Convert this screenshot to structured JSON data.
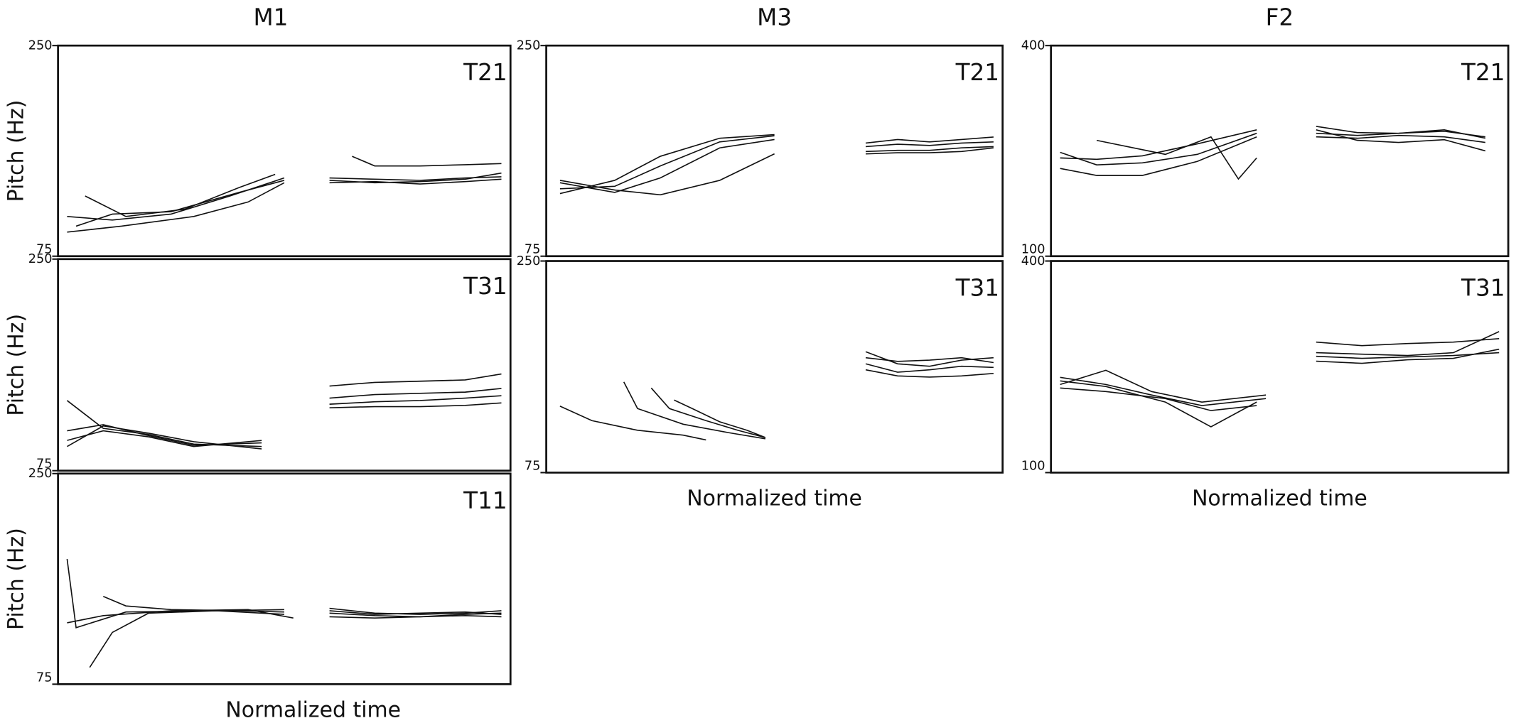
{
  "chart_data": [
    {
      "type": "line",
      "title": "M1",
      "annotation": "T21",
      "y_label": "Pitch (Hz)",
      "xlim": [
        0,
        1
      ],
      "ylim": [
        75,
        250
      ],
      "yticks": [
        75,
        250
      ],
      "series": [
        {
          "color": "#111",
          "x": [
            0.02,
            0.12,
            0.25,
            0.38,
            0.5
          ],
          "values": [
            108,
            105,
            110,
            125,
            140
          ]
        },
        {
          "color": "#111",
          "x": [
            0.04,
            0.12,
            0.25,
            0.4,
            0.5
          ],
          "values": [
            100,
            110,
            112,
            128,
            138
          ]
        },
        {
          "color": "#111",
          "x": [
            0.06,
            0.15,
            0.28,
            0.4,
            0.48
          ],
          "values": [
            125,
            108,
            114,
            132,
            143
          ]
        },
        {
          "color": "#111",
          "x": [
            0.02,
            0.14,
            0.3,
            0.42,
            0.5
          ],
          "values": [
            95,
            100,
            108,
            120,
            136
          ]
        },
        {
          "color": "#111",
          "x": [
            0.6,
            0.7,
            0.8,
            0.9,
            0.98
          ],
          "values": [
            140,
            139,
            138,
            140,
            141
          ]
        },
        {
          "color": "#111",
          "x": [
            0.6,
            0.7,
            0.8,
            0.9,
            0.98
          ],
          "values": [
            136,
            137,
            135,
            137,
            139
          ]
        },
        {
          "color": "#111",
          "x": [
            0.65,
            0.7,
            0.8,
            0.9,
            0.98
          ],
          "values": [
            158,
            150,
            150,
            151,
            152
          ]
        },
        {
          "color": "#111",
          "x": [
            0.6,
            0.7,
            0.8,
            0.9,
            0.98
          ],
          "values": [
            138,
            136,
            137,
            139,
            144
          ]
        }
      ]
    },
    {
      "type": "line",
      "annotation": "T31",
      "y_label": "Pitch (Hz)",
      "xlim": [
        0,
        1
      ],
      "ylim": [
        75,
        250
      ],
      "yticks": [
        75,
        250
      ],
      "series": [
        {
          "color": "#111",
          "x": [
            0.02,
            0.1,
            0.2,
            0.3,
            0.45
          ],
          "values": [
            108,
            113,
            104,
            96,
            98
          ]
        },
        {
          "color": "#111",
          "x": [
            0.02,
            0.1,
            0.2,
            0.3,
            0.45
          ],
          "values": [
            133,
            110,
            105,
            97,
            95
          ]
        },
        {
          "color": "#111",
          "x": [
            0.02,
            0.1,
            0.2,
            0.3,
            0.45
          ],
          "values": [
            95,
            112,
            106,
            99,
            93
          ]
        },
        {
          "color": "#111",
          "x": [
            0.02,
            0.1,
            0.2,
            0.3,
            0.45
          ],
          "values": [
            100,
            108,
            103,
            95,
            100
          ]
        },
        {
          "color": "#111",
          "x": [
            0.6,
            0.7,
            0.8,
            0.9,
            0.98
          ],
          "values": [
            145,
            148,
            149,
            150,
            155
          ]
        },
        {
          "color": "#111",
          "x": [
            0.6,
            0.7,
            0.8,
            0.9,
            0.98
          ],
          "values": [
            135,
            138,
            139,
            140,
            143
          ]
        },
        {
          "color": "#111",
          "x": [
            0.6,
            0.7,
            0.8,
            0.9,
            0.98
          ],
          "values": [
            127,
            128,
            128,
            129,
            131
          ]
        },
        {
          "color": "#111",
          "x": [
            0.6,
            0.7,
            0.8,
            0.9,
            0.98
          ],
          "values": [
            130,
            132,
            133,
            135,
            137
          ]
        }
      ]
    },
    {
      "type": "line",
      "annotation": "T11",
      "y_label": "Pitch (Hz)",
      "x_label": "Normalized time",
      "xlim": [
        0,
        1
      ],
      "ylim": [
        75,
        250
      ],
      "yticks": [
        75,
        250
      ],
      "series": [
        {
          "color": "#111",
          "x": [
            0.02,
            0.04,
            0.15,
            0.35,
            0.5
          ],
          "values": [
            179,
            122,
            135,
            136,
            133
          ]
        },
        {
          "color": "#111",
          "x": [
            0.07,
            0.12,
            0.2,
            0.35,
            0.5
          ],
          "values": [
            89,
            118,
            134,
            136,
            137
          ]
        },
        {
          "color": "#111",
          "x": [
            0.1,
            0.15,
            0.25,
            0.4,
            0.5
          ],
          "values": [
            148,
            140,
            137,
            136,
            135
          ]
        },
        {
          "color": "#111",
          "x": [
            0.02,
            0.1,
            0.25,
            0.42,
            0.52
          ],
          "values": [
            126,
            132,
            136,
            137,
            130
          ]
        },
        {
          "color": "#111",
          "x": [
            0.6,
            0.7,
            0.8,
            0.9,
            0.98
          ],
          "values": [
            138,
            134,
            133,
            134,
            136
          ]
        },
        {
          "color": "#111",
          "x": [
            0.6,
            0.7,
            0.8,
            0.9,
            0.98
          ],
          "values": [
            134,
            132,
            131,
            133,
            134
          ]
        },
        {
          "color": "#111",
          "x": [
            0.6,
            0.7,
            0.8,
            0.9,
            0.98
          ],
          "values": [
            131,
            130,
            131,
            132,
            131
          ]
        },
        {
          "color": "#111",
          "x": [
            0.6,
            0.7,
            0.8,
            0.9,
            0.98
          ],
          "values": [
            136,
            133,
            134,
            135,
            133
          ]
        }
      ]
    },
    {
      "type": "line",
      "title": "M3",
      "annotation": "T21",
      "xlim": [
        0,
        1
      ],
      "ylim": [
        75,
        250
      ],
      "yticks": [
        75,
        250
      ],
      "series": [
        {
          "color": "#111",
          "x": [
            0.03,
            0.15,
            0.25,
            0.38,
            0.5
          ],
          "values": [
            136,
            128,
            140,
            165,
            172
          ]
        },
        {
          "color": "#111",
          "x": [
            0.03,
            0.15,
            0.25,
            0.38,
            0.5
          ],
          "values": [
            131,
            133,
            150,
            170,
            175
          ]
        },
        {
          "color": "#111",
          "x": [
            0.03,
            0.15,
            0.25,
            0.38,
            0.5
          ],
          "values": [
            127,
            138,
            158,
            173,
            176
          ]
        },
        {
          "color": "#111",
          "x": [
            0.03,
            0.15,
            0.25,
            0.38,
            0.5
          ],
          "values": [
            138,
            130,
            126,
            138,
            160
          ]
        },
        {
          "color": "#111",
          "x": [
            0.7,
            0.77,
            0.84,
            0.91,
            0.98
          ],
          "values": [
            166,
            168,
            167,
            169,
            170
          ]
        },
        {
          "color": "#111",
          "x": [
            0.7,
            0.77,
            0.84,
            0.91,
            0.98
          ],
          "values": [
            162,
            163,
            163,
            165,
            166
          ]
        },
        {
          "color": "#111",
          "x": [
            0.7,
            0.77,
            0.84,
            0.91,
            0.98
          ],
          "values": [
            169,
            172,
            170,
            172,
            174
          ]
        },
        {
          "color": "#111",
          "x": [
            0.7,
            0.77,
            0.84,
            0.91,
            0.98
          ],
          "values": [
            160,
            161,
            161,
            162,
            165
          ]
        }
      ]
    },
    {
      "type": "line",
      "annotation": "T31",
      "x_label": "Normalized time",
      "xlim": [
        0,
        1
      ],
      "ylim": [
        75,
        250
      ],
      "yticks": [
        75,
        250
      ],
      "series": [
        {
          "color": "#111",
          "x": [
            0.03,
            0.1,
            0.2,
            0.3,
            0.35
          ],
          "values": [
            130,
            118,
            110,
            106,
            102
          ]
        },
        {
          "color": "#111",
          "x": [
            0.17,
            0.2,
            0.3,
            0.4,
            0.48
          ],
          "values": [
            150,
            128,
            115,
            108,
            103
          ]
        },
        {
          "color": "#111",
          "x": [
            0.23,
            0.27,
            0.35,
            0.42,
            0.48
          ],
          "values": [
            145,
            128,
            118,
            110,
            104
          ]
        },
        {
          "color": "#111",
          "x": [
            0.28,
            0.32,
            0.38,
            0.44,
            0.48
          ],
          "values": [
            135,
            128,
            117,
            110,
            104
          ]
        },
        {
          "color": "#111",
          "x": [
            0.7,
            0.77,
            0.84,
            0.91,
            0.98
          ],
          "values": [
            175,
            165,
            163,
            168,
            170
          ]
        },
        {
          "color": "#111",
          "x": [
            0.7,
            0.77,
            0.84,
            0.91,
            0.98
          ],
          "values": [
            165,
            158,
            160,
            163,
            162
          ]
        },
        {
          "color": "#111",
          "x": [
            0.7,
            0.77,
            0.84,
            0.91,
            0.98
          ],
          "values": [
            170,
            167,
            168,
            170,
            166
          ]
        },
        {
          "color": "#111",
          "x": [
            0.7,
            0.77,
            0.84,
            0.91,
            0.98
          ],
          "values": [
            160,
            155,
            154,
            155,
            157
          ]
        }
      ]
    },
    {
      "type": "line",
      "title": "F2",
      "annotation": "T21",
      "xlim": [
        0,
        1
      ],
      "ylim": [
        100,
        400
      ],
      "yticks": [
        100,
        400
      ],
      "series": [
        {
          "color": "#111",
          "x": [
            0.02,
            0.1,
            0.2,
            0.32,
            0.45
          ],
          "values": [
            248,
            230,
            233,
            245,
            275
          ]
        },
        {
          "color": "#111",
          "x": [
            0.02,
            0.1,
            0.2,
            0.32,
            0.45
          ],
          "values": [
            225,
            215,
            215,
            235,
            270
          ]
        },
        {
          "color": "#111",
          "x": [
            0.1,
            0.25,
            0.35,
            0.41,
            0.45
          ],
          "values": [
            265,
            245,
            270,
            210,
            240
          ]
        },
        {
          "color": "#111",
          "x": [
            0.02,
            0.1,
            0.2,
            0.32,
            0.45
          ],
          "values": [
            240,
            238,
            243,
            260,
            280
          ]
        },
        {
          "color": "#111",
          "x": [
            0.58,
            0.67,
            0.76,
            0.86,
            0.95
          ],
          "values": [
            285,
            276,
            275,
            278,
            270
          ]
        },
        {
          "color": "#111",
          "x": [
            0.58,
            0.67,
            0.76,
            0.86,
            0.95
          ],
          "values": [
            270,
            268,
            272,
            270,
            262
          ]
        },
        {
          "color": "#111",
          "x": [
            0.58,
            0.67,
            0.76,
            0.86,
            0.95
          ],
          "values": [
            280,
            265,
            262,
            266,
            250
          ]
        },
        {
          "color": "#111",
          "x": [
            0.58,
            0.67,
            0.76,
            0.86,
            0.95
          ],
          "values": [
            275,
            272,
            275,
            280,
            268
          ]
        }
      ]
    },
    {
      "type": "line",
      "annotation": "T31",
      "x_label": "Normalized time",
      "xlim": [
        0,
        1
      ],
      "ylim": [
        100,
        400
      ],
      "yticks": [
        100,
        400
      ],
      "series": [
        {
          "color": "#111",
          "x": [
            0.02,
            0.12,
            0.22,
            0.33,
            0.47
          ],
          "values": [
            235,
            225,
            210,
            195,
            205
          ]
        },
        {
          "color": "#111",
          "x": [
            0.02,
            0.12,
            0.22,
            0.33,
            0.47
          ],
          "values": [
            225,
            245,
            215,
            200,
            210
          ]
        },
        {
          "color": "#111",
          "x": [
            0.02,
            0.12,
            0.25,
            0.35,
            0.45
          ],
          "values": [
            230,
            222,
            200,
            165,
            200
          ]
        },
        {
          "color": "#111",
          "x": [
            0.02,
            0.12,
            0.25,
            0.35,
            0.45
          ],
          "values": [
            220,
            215,
            205,
            188,
            195
          ]
        },
        {
          "color": "#111",
          "x": [
            0.58,
            0.68,
            0.78,
            0.88,
            0.98
          ],
          "values": [
            285,
            280,
            283,
            285,
            290
          ]
        },
        {
          "color": "#111",
          "x": [
            0.58,
            0.68,
            0.78,
            0.88,
            0.98
          ],
          "values": [
            265,
            262,
            264,
            266,
            270
          ]
        },
        {
          "color": "#111",
          "x": [
            0.58,
            0.68,
            0.78,
            0.88,
            0.98
          ],
          "values": [
            258,
            255,
            260,
            262,
            275
          ]
        },
        {
          "color": "#111",
          "x": [
            0.58,
            0.68,
            0.78,
            0.88,
            0.98
          ],
          "values": [
            270,
            268,
            266,
            270,
            300
          ]
        }
      ]
    }
  ]
}
